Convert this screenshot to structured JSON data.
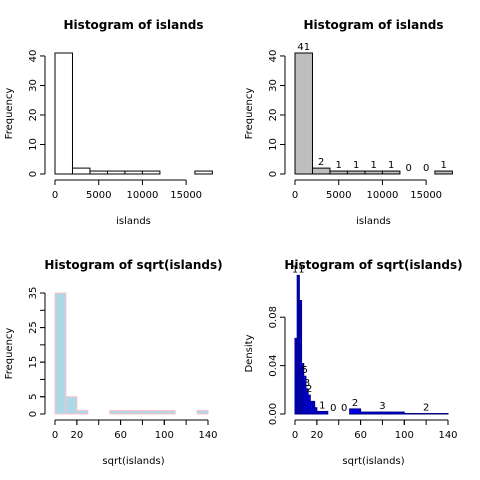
{
  "chart_data": [
    {
      "type": "bar",
      "title": "Histogram of islands",
      "xlabel": "islands",
      "ylabel": "Frequency",
      "bin_edges": [
        0,
        2000,
        4000,
        6000,
        8000,
        10000,
        12000,
        14000,
        16000,
        18000
      ],
      "values": [
        41,
        2,
        1,
        1,
        1,
        1,
        0,
        0,
        1
      ],
      "xlim": [
        0,
        17500
      ],
      "ylim": [
        0,
        41
      ],
      "xticks": [
        "0",
        "5000",
        "10000",
        "15000"
      ],
      "yticks": [
        "0",
        "10",
        "20",
        "30",
        "40"
      ],
      "fill": "#ffffff",
      "border": "#000000",
      "show_labels": false
    },
    {
      "type": "bar",
      "title": "Histogram of islands",
      "xlabel": "islands",
      "ylabel": "Frequency",
      "bin_edges": [
        0,
        2000,
        4000,
        6000,
        8000,
        10000,
        12000,
        14000,
        16000,
        18000
      ],
      "values": [
        41,
        2,
        1,
        1,
        1,
        1,
        0,
        0,
        1
      ],
      "labels": [
        "41",
        "2",
        "1",
        "1",
        "1",
        "1",
        "0",
        "0",
        "1"
      ],
      "xlim": [
        0,
        17500
      ],
      "ylim": [
        0,
        41
      ],
      "xticks": [
        "0",
        "5000",
        "10000",
        "15000"
      ],
      "yticks": [
        "0",
        "10",
        "20",
        "30",
        "40"
      ],
      "fill": "#bebebe",
      "border": "#000000",
      "show_labels": true
    },
    {
      "type": "bar",
      "title": "Histogram of sqrt(islands)",
      "xlabel": "sqrt(islands)",
      "ylabel": "Frequency",
      "bin_edges": [
        0,
        10,
        20,
        30,
        40,
        50,
        60,
        70,
        80,
        90,
        100,
        110,
        120,
        130,
        140
      ],
      "values": [
        35,
        5,
        1,
        0,
        0,
        1,
        1,
        1,
        1,
        1,
        1,
        0,
        0,
        1
      ],
      "xlim": [
        0,
        140
      ],
      "ylim": [
        0,
        35
      ],
      "xticks": [
        "0",
        "20",
        "60",
        "100",
        "140"
      ],
      "yticks": [
        "0",
        "5",
        "15",
        "25",
        "35"
      ],
      "fill": "#add8e6",
      "border": "#ffc0cb",
      "show_labels": false
    },
    {
      "type": "bar",
      "title": "Histogram of sqrt(islands)",
      "xlabel": "sqrt(islands)",
      "ylabel": "Density",
      "bin_edges": [
        0,
        2,
        4,
        6,
        8,
        10,
        12,
        14,
        16,
        18,
        20,
        30,
        40,
        50,
        60,
        100,
        140
      ],
      "values": [
        0.0625,
        0.1146,
        0.0938,
        0.0417,
        0.0312,
        0.0208,
        0.0156,
        0.0104,
        0.0104,
        0.0052,
        0.0021,
        0.0,
        0.0,
        0.0042,
        0.0016,
        0.0004
      ],
      "labels": [
        "",
        "11",
        "",
        "",
        "5",
        "3",
        "2",
        "",
        "",
        "",
        "1",
        "0",
        "0",
        "2",
        "3",
        "2"
      ],
      "xlim": [
        0,
        140
      ],
      "ylim": [
        0,
        0.1
      ],
      "xticks": [
        "0",
        "20",
        "60",
        "100",
        "140"
      ],
      "yticks": [
        "0.00",
        "0.04",
        "0.08"
      ],
      "fill": "#0000ff",
      "border": "#000080",
      "shading": "dense-lines",
      "show_labels": true
    }
  ]
}
